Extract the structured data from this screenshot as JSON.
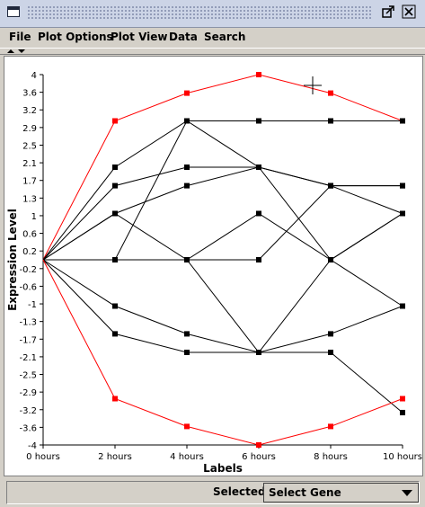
{
  "menu": {
    "items": [
      "File",
      "Plot Options",
      "Plot View",
      "Data",
      "Search"
    ]
  },
  "status": {
    "selected_label": "Selected:",
    "gene_select_value": "Select Gene"
  },
  "chart_data": {
    "type": "line",
    "xlabel": "Labels",
    "ylabel": "Expression Level",
    "categories": [
      "0 hours",
      "2 hours",
      "4 hours",
      "6 hours",
      "8 hours",
      "10 hours"
    ],
    "ylim": [
      -4,
      4
    ],
    "yticks": [
      "4",
      "3.6",
      "3.2",
      "2.9",
      "2.5",
      "2.1",
      "1.7",
      "1.3",
      "1",
      "0.6",
      "0.2",
      "-0.2",
      "-0.6",
      "-1",
      "-1.3",
      "-1.7",
      "-2.1",
      "-2.5",
      "-2.9",
      "-3.2",
      "-3.6",
      "-4"
    ],
    "series": [
      {
        "values": [
          0,
          3,
          3.6,
          4,
          3.6,
          3
        ],
        "color": "#ff0000"
      },
      {
        "values": [
          0,
          2,
          3,
          2,
          0,
          -1
        ],
        "color": "#000000"
      },
      {
        "values": [
          0,
          1.6,
          2,
          2,
          1.6,
          1.6
        ],
        "color": "#000000"
      },
      {
        "values": [
          0,
          1,
          1.6,
          2,
          1.6,
          1
        ],
        "color": "#000000"
      },
      {
        "values": [
          0,
          1,
          0,
          -2,
          -2,
          -3.3
        ],
        "color": "#000000"
      },
      {
        "values": [
          0,
          0,
          0,
          0,
          1.6,
          1.6
        ],
        "color": "#000000"
      },
      {
        "values": [
          0,
          0,
          0,
          1,
          0,
          1
        ],
        "color": "#000000"
      },
      {
        "values": [
          0,
          0,
          3,
          3,
          3,
          3
        ],
        "color": "#000000"
      },
      {
        "values": [
          0,
          -1,
          -1.6,
          -2,
          -1.6,
          -1
        ],
        "color": "#000000"
      },
      {
        "values": [
          0,
          -1.6,
          -2,
          -2,
          0,
          1
        ],
        "color": "#000000"
      },
      {
        "values": [
          0,
          -3,
          -3.6,
          -4,
          -3.6,
          -3
        ],
        "color": "#ff0000"
      }
    ]
  }
}
